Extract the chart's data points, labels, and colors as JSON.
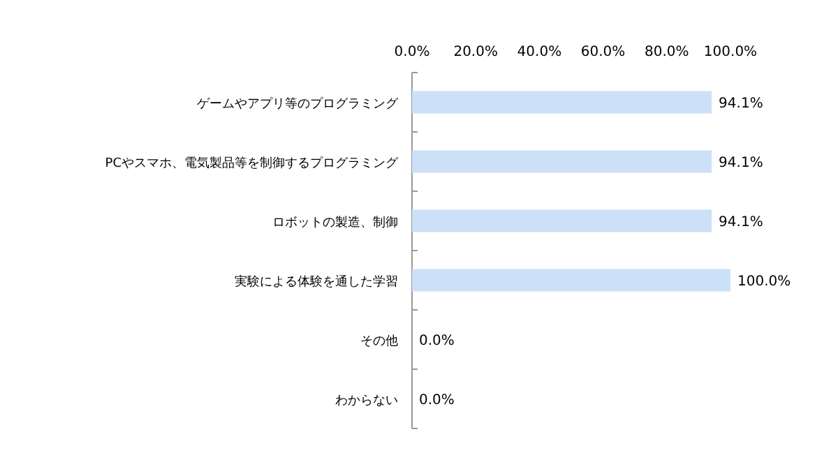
{
  "chart_data": {
    "type": "bar",
    "orientation": "horizontal",
    "categories": [
      "ゲームやアプリ等のプログラミング",
      "PCやスマホ、電気製品等を制御するプログラミング",
      "ロボットの製造、制御",
      "実験による体験を通した学習",
      "その他",
      "わからない"
    ],
    "values": [
      94.1,
      94.1,
      94.1,
      100.0,
      0.0,
      0.0
    ],
    "value_labels": [
      "94.1%",
      "94.1%",
      "94.1%",
      "100.0%",
      "0.0%",
      "0.0%"
    ],
    "color": "#cce0f8",
    "xlim": [
      0,
      100
    ],
    "xticks": [
      {
        "value": 0,
        "label": "0.0%"
      },
      {
        "value": 20,
        "label": "20.0%"
      },
      {
        "value": 40,
        "label": "40.0%"
      },
      {
        "value": 60,
        "label": "60.0%"
      },
      {
        "value": 80,
        "label": "80.0%"
      },
      {
        "value": 100,
        "label": "100.0%"
      }
    ]
  }
}
